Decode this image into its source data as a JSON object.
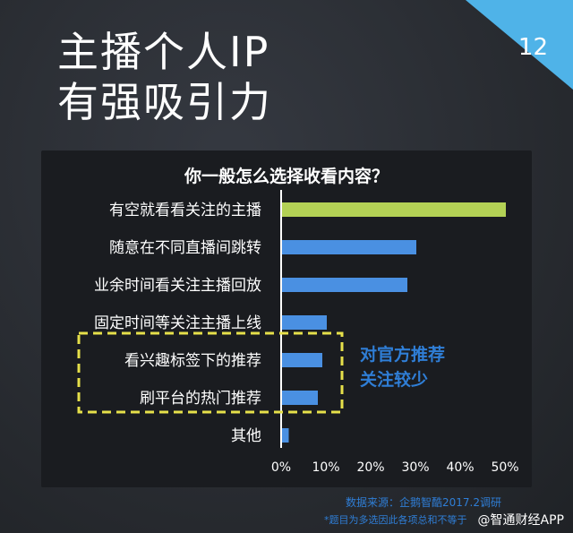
{
  "page_number": "12",
  "title": {
    "line1": "主播个人IP",
    "line2": "有强吸引力"
  },
  "chart_data": {
    "type": "bar",
    "orientation": "horizontal",
    "title": "你一般怎么选择收看内容？",
    "categories": [
      "有空就看看关注的主播",
      "随意在不同直播间跳转",
      "业余时间看关注主播回放",
      "固定时间等关注主播上线",
      "看兴趣标签下的推荐",
      "刷平台的热门推荐",
      "其他"
    ],
    "values": [
      50,
      30,
      28,
      10,
      9,
      8,
      1.5
    ],
    "xlim": [
      0,
      50
    ],
    "xticks": [
      "0%",
      "10%",
      "20%",
      "30%",
      "40%",
      "50%"
    ],
    "colors": {
      "highlight": "#b3d155",
      "default": "#4a90e2"
    },
    "highlight_index": 0,
    "annotation": {
      "line1": "对官方推荐",
      "line2": "关注较少",
      "color": "#2f7ed6",
      "box_color": "#e6e04a"
    }
  },
  "footer": {
    "source": "数据来源：企鹅智酷2017.2调研",
    "note": "*题目为多选因此各项总和不等于",
    "watermark": "@智通财经APP"
  }
}
